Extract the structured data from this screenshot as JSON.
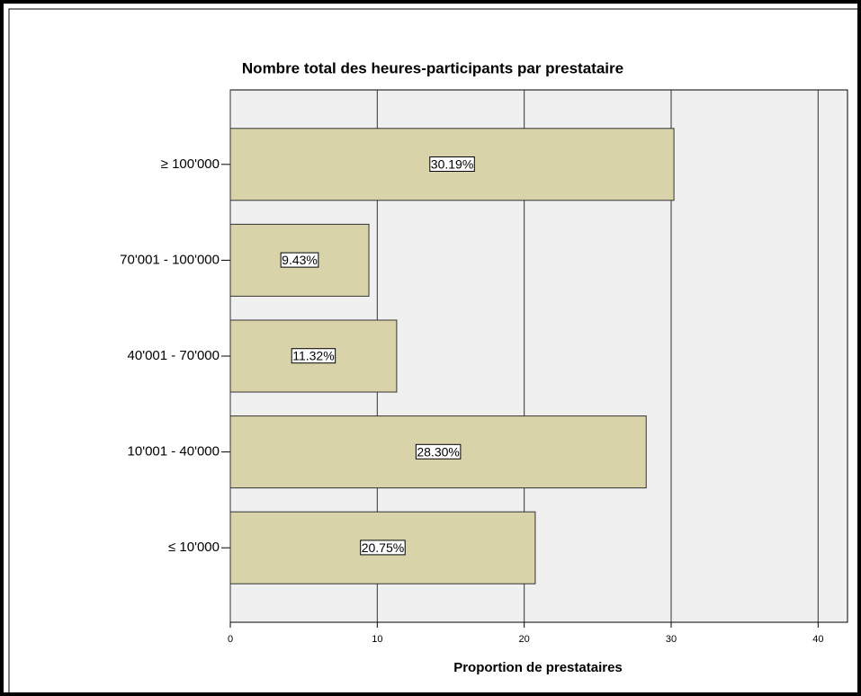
{
  "chart_data": {
    "type": "barh",
    "title": "Nombre total des heures-participants par prestataire",
    "xlabel": "Proportion de prestataires",
    "categories": [
      "≥ 100'000",
      "70'001 - 100'000",
      "40'001 - 70'000",
      "10'001 - 40'000",
      "≤ 10'000"
    ],
    "values": [
      30.19,
      9.43,
      11.32,
      28.3,
      20.75
    ],
    "value_labels": [
      "30.19%",
      "9.43%",
      "11.32%",
      "28.30%",
      "20.75%"
    ],
    "color": "#d9d3a9",
    "xlim": [
      0,
      42
    ],
    "xticks": [
      0,
      10,
      20,
      30,
      40
    ],
    "grid": true
  }
}
